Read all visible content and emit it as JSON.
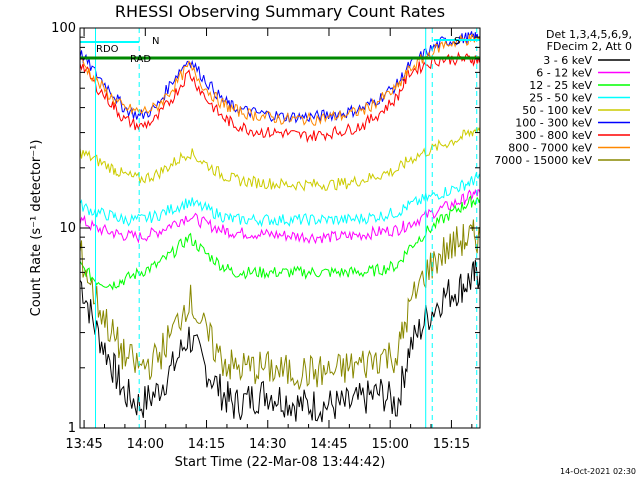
{
  "chart_data": {
    "type": "line",
    "title": "RHESSI Observing Summary Count Rates",
    "xlabel": "Start Time (22-Mar-08 13:44:42)",
    "ylabel": "Count Rate (s⁻¹ detector⁻¹)",
    "y_scale": "log",
    "ylim": [
      1,
      100
    ],
    "x_range_minutes": [
      "13:44:42",
      "15:22"
    ],
    "x_ticks": [
      "13:45",
      "14:00",
      "14:15",
      "14:30",
      "14:45",
      "15:00",
      "15:15"
    ],
    "y_ticks": [
      "1",
      "10",
      "100"
    ],
    "legend_header": [
      "Det 1,3,4,5,6,9,",
      "FDecim 2, Att 0"
    ],
    "flags": [
      "RDO",
      "N",
      "RAD",
      "S"
    ],
    "timestamp": "14-Oct-2021 02:30",
    "grid": false,
    "legend_position": "right",
    "x_minutes": [
      -0.7,
      3,
      7,
      10,
      14,
      18,
      22,
      26,
      30,
      34,
      37,
      41,
      45,
      49,
      53,
      57,
      61,
      65,
      69,
      73,
      77,
      80,
      84,
      88,
      92,
      95,
      97.3
    ],
    "series": [
      {
        "name": "3 - 6 keV",
        "color": "#000000",
        "values": [
          5.5,
          3.2,
          2.1,
          1.5,
          1.3,
          1.5,
          2.0,
          2.9,
          2.0,
          1.5,
          1.3,
          1.4,
          1.5,
          1.4,
          1.3,
          1.3,
          1.3,
          1.3,
          1.4,
          1.5,
          1.3,
          2.5,
          3.5,
          4.5,
          5.0,
          5.5,
          6.0
        ]
      },
      {
        "name": "6 - 12 keV",
        "color": "#ff00ff",
        "values": [
          11,
          10,
          9.5,
          9.2,
          9.0,
          9.5,
          10.5,
          11.5,
          10.5,
          9.8,
          9.5,
          9.4,
          9.3,
          9.2,
          9.1,
          9.0,
          9.0,
          9.1,
          9.3,
          9.6,
          9.8,
          10.5,
          11.5,
          12.5,
          13.5,
          14.5,
          15
        ]
      },
      {
        "name": "12 - 25 keV",
        "color": "#00ff00",
        "values": [
          6.5,
          5.5,
          5.2,
          5.5,
          6.0,
          6.5,
          7.5,
          9.0,
          7.5,
          6.5,
          6.0,
          6.0,
          6.0,
          6.0,
          6.0,
          6.0,
          6.0,
          6.0,
          6.0,
          6.2,
          6.5,
          8.0,
          9.5,
          11.0,
          12.5,
          13.5,
          14
        ]
      },
      {
        "name": "25 - 50 keV",
        "color": "#00ffff",
        "values": [
          13,
          12,
          11.5,
          11,
          11,
          11.5,
          12.5,
          13.5,
          12.5,
          11.5,
          11,
          11,
          11,
          11,
          11,
          11,
          11,
          11,
          11.2,
          11.5,
          12,
          13,
          14,
          15,
          16,
          17,
          18
        ]
      },
      {
        "name": "50 - 100 keV",
        "color": "#cccc00",
        "values": [
          24,
          22,
          20,
          18.5,
          17.5,
          18.5,
          21,
          24,
          21,
          18.5,
          17.5,
          17,
          16.8,
          16.5,
          16.5,
          16.5,
          16.5,
          16.8,
          17.5,
          18.5,
          19.5,
          22,
          24,
          26,
          28,
          30,
          32
        ]
      },
      {
        "name": "100 - 300 keV",
        "color": "#0000ff",
        "values": [
          75,
          60,
          48,
          40,
          36,
          40,
          55,
          70,
          55,
          44,
          40,
          38,
          37,
          36,
          36,
          36,
          37,
          38,
          40,
          45,
          52,
          65,
          75,
          85,
          88,
          90,
          90
        ]
      },
      {
        "name": "300 - 800 keV",
        "color": "#ff0000",
        "values": [
          68,
          52,
          42,
          35,
          32,
          35,
          45,
          60,
          45,
          36,
          33,
          31,
          30,
          30,
          29,
          29,
          30,
          31,
          33,
          38,
          45,
          60,
          66,
          70,
          70,
          70,
          70
        ]
      },
      {
        "name": "800 - 7000 keV",
        "color": "#ff8800",
        "values": [
          70,
          55,
          45,
          40,
          38,
          40,
          50,
          65,
          50,
          42,
          39,
          37,
          36,
          35,
          35,
          35,
          36,
          37,
          39,
          44,
          50,
          62,
          72,
          82,
          86,
          88,
          88
        ]
      },
      {
        "name": "7000 - 15000 keV",
        "color": "#888800",
        "values": [
          7.5,
          4.5,
          3.0,
          2.3,
          2.0,
          2.2,
          3.0,
          4.5,
          3.0,
          2.2,
          2.0,
          2.0,
          2.0,
          1.9,
          1.9,
          1.9,
          1.9,
          2.0,
          2.1,
          2.3,
          2.3,
          4.0,
          6.0,
          7.5,
          8.5,
          9.0,
          9.0
        ]
      }
    ]
  }
}
